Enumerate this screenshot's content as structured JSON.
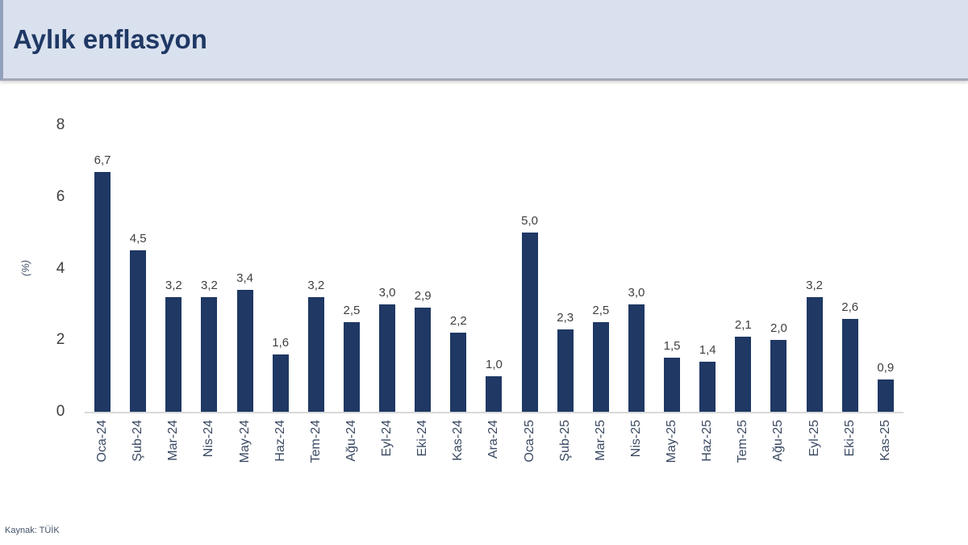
{
  "header": {
    "title": "Aylık enflasyon"
  },
  "footer": {
    "source": "Kaynak: TÜİK"
  },
  "colors": {
    "bar": "#1f3864",
    "title": "#1f3864",
    "header_bg": "#dae1ee",
    "axis_line": "#d9d9d9",
    "tick_text": "#404040"
  },
  "chart_data": {
    "type": "bar",
    "title": "Aylık enflasyon",
    "xlabel": "",
    "ylabel": "(%)",
    "ylim": [
      0,
      8
    ],
    "yticks": [
      8,
      6,
      4,
      2,
      0
    ],
    "grid": false,
    "legend": null,
    "categories": [
      "Oca-24",
      "Şub-24",
      "Mar-24",
      "Nis-24",
      "May-24",
      "Haz-24",
      "Tem-24",
      "Ağu-24",
      "Eyl-24",
      "Eki-24",
      "Kas-24",
      "Ara-24",
      "Oca-25",
      "Şub-25",
      "Mar-25",
      "Nis-25",
      "May-25",
      "Haz-25",
      "Tem-25",
      "Ağu-25",
      "Eyl-25",
      "Eki-25",
      "Kas-25"
    ],
    "values": [
      6.7,
      4.5,
      3.2,
      3.2,
      3.4,
      1.6,
      3.2,
      2.5,
      3.0,
      2.9,
      2.2,
      1.0,
      5.0,
      2.3,
      2.5,
      3.0,
      1.5,
      1.4,
      2.1,
      2.0,
      3.2,
      2.6,
      0.9
    ],
    "value_labels": [
      "6,7",
      "4,5",
      "3,2",
      "3,2",
      "3,4",
      "1,6",
      "3,2",
      "2,5",
      "3,0",
      "2,9",
      "2,2",
      "1,0",
      "5,0",
      "2,3",
      "2,5",
      "3,0",
      "1,5",
      "1,4",
      "2,1",
      "2,0",
      "3,2",
      "2,6",
      "0,9"
    ]
  }
}
